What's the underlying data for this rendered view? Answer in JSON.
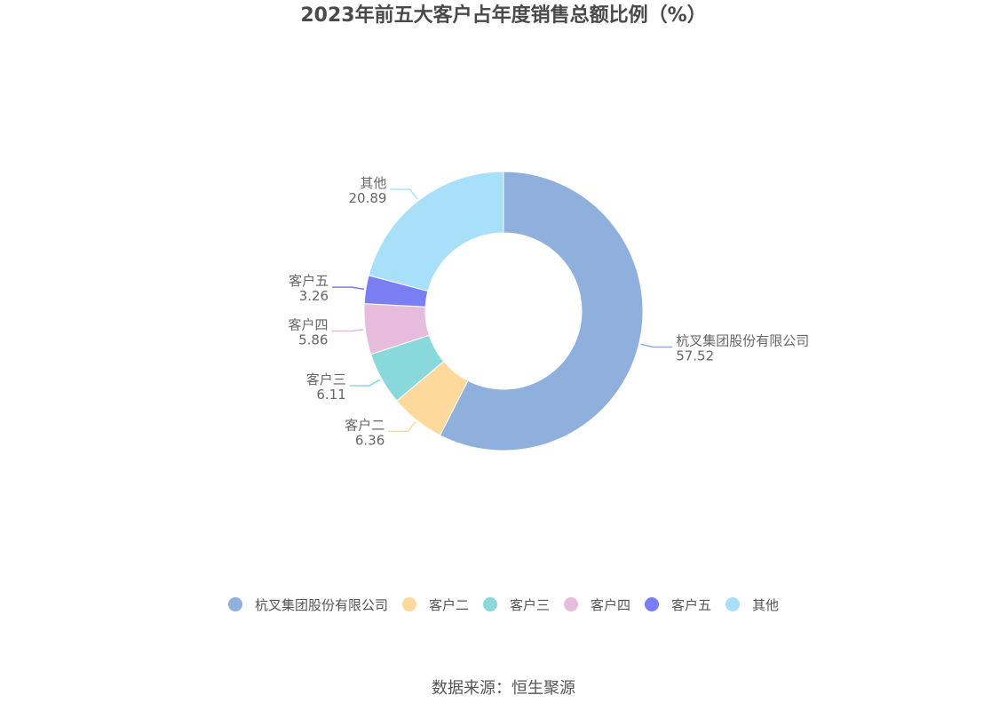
{
  "title": "2023年前五大客户占年度销售总额比例（%）",
  "source": "数据来源：恒生聚源",
  "chart_data": {
    "type": "pie",
    "donut": true,
    "title": "2023年前五大客户占年度销售总额比例（%）",
    "start_angle_deg": 90,
    "direction": "clockwise",
    "legend_position": "bottom",
    "series": [
      {
        "name": "杭叉集团股份有限公司",
        "value": 57.52,
        "value_label": "57.52",
        "color": "#8fafdc"
      },
      {
        "name": "客户二",
        "value": 6.36,
        "value_label": "6.36",
        "color": "#fdd99b"
      },
      {
        "name": "客户三",
        "value": 6.11,
        "value_label": "6.11",
        "color": "#88d8dc"
      },
      {
        "name": "客户四",
        "value": 5.86,
        "value_label": "5.86",
        "color": "#e6bbdb"
      },
      {
        "name": "客户五",
        "value": 3.26,
        "value_label": "3.26",
        "color": "#7a7ef3"
      },
      {
        "name": "其他",
        "value": 20.89,
        "value_label": "20.89",
        "color": "#a8e0fa"
      }
    ]
  }
}
